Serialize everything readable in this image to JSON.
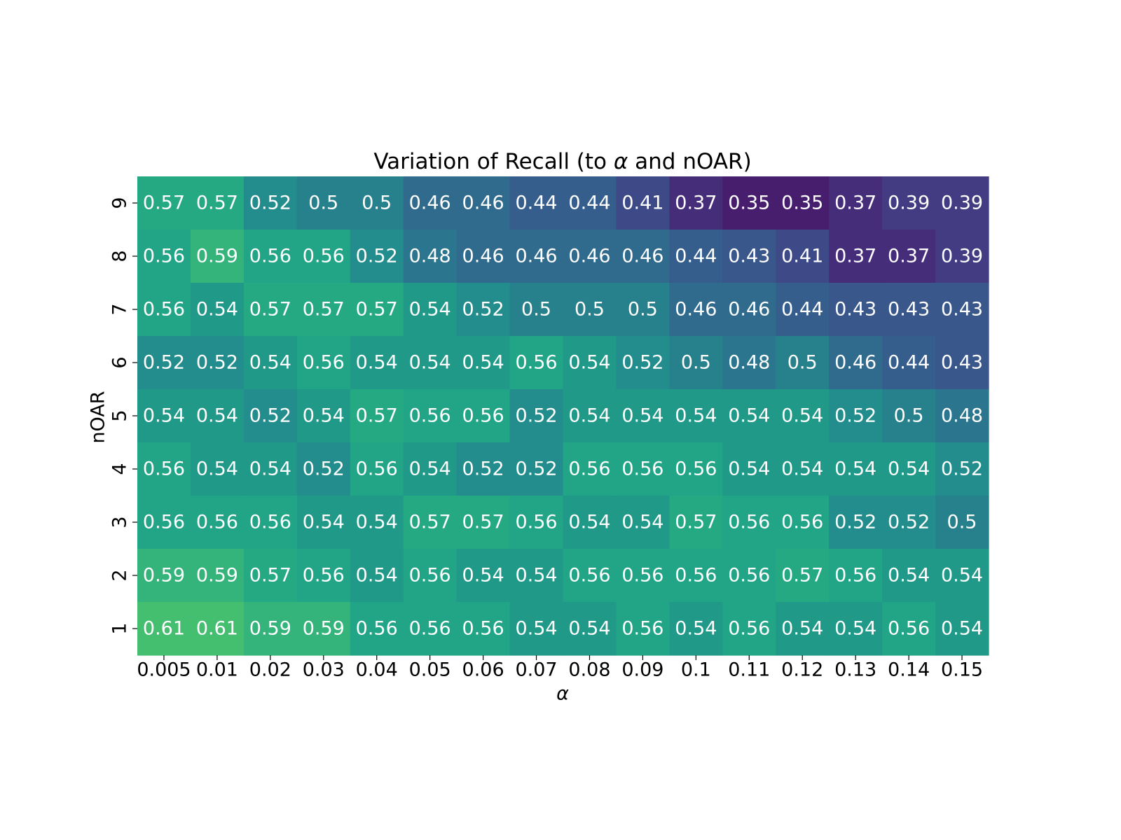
{
  "chart_data": {
    "type": "heatmap",
    "title_pre": "Variation of Recall (to ",
    "title_symbol": "α",
    "title_post": " and nOAR)",
    "xlabel": "α",
    "ylabel": "nOAR",
    "x_categories": [
      "0.005",
      "0.01",
      "0.02",
      "0.03",
      "0.04",
      "0.05",
      "0.06",
      "0.07",
      "0.08",
      "0.09",
      "0.1",
      "0.11",
      "0.12",
      "0.13",
      "0.14",
      "0.15"
    ],
    "y_categories": [
      "9",
      "8",
      "7",
      "6",
      "5",
      "4",
      "3",
      "2",
      "1"
    ],
    "values": [
      [
        0.57,
        0.57,
        0.52,
        0.5,
        0.5,
        0.46,
        0.46,
        0.44,
        0.44,
        0.41,
        0.37,
        0.35,
        0.35,
        0.37,
        0.39,
        0.39
      ],
      [
        0.56,
        0.59,
        0.56,
        0.56,
        0.52,
        0.48,
        0.46,
        0.46,
        0.46,
        0.46,
        0.44,
        0.43,
        0.41,
        0.37,
        0.37,
        0.39
      ],
      [
        0.56,
        0.54,
        0.57,
        0.57,
        0.57,
        0.54,
        0.52,
        0.5,
        0.5,
        0.5,
        0.46,
        0.46,
        0.44,
        0.43,
        0.43,
        0.43
      ],
      [
        0.52,
        0.52,
        0.54,
        0.56,
        0.54,
        0.54,
        0.54,
        0.56,
        0.54,
        0.52,
        0.5,
        0.48,
        0.5,
        0.46,
        0.44,
        0.43
      ],
      [
        0.54,
        0.54,
        0.52,
        0.54,
        0.57,
        0.56,
        0.56,
        0.52,
        0.54,
        0.54,
        0.54,
        0.54,
        0.54,
        0.52,
        0.5,
        0.48
      ],
      [
        0.56,
        0.54,
        0.54,
        0.52,
        0.56,
        0.54,
        0.52,
        0.52,
        0.56,
        0.56,
        0.56,
        0.54,
        0.54,
        0.54,
        0.54,
        0.52
      ],
      [
        0.56,
        0.56,
        0.56,
        0.54,
        0.54,
        0.57,
        0.57,
        0.56,
        0.54,
        0.54,
        0.57,
        0.56,
        0.56,
        0.52,
        0.52,
        0.5
      ],
      [
        0.59,
        0.59,
        0.57,
        0.56,
        0.54,
        0.56,
        0.54,
        0.54,
        0.56,
        0.56,
        0.56,
        0.56,
        0.57,
        0.56,
        0.54,
        0.54
      ],
      [
        0.61,
        0.61,
        0.59,
        0.59,
        0.56,
        0.56,
        0.56,
        0.54,
        0.54,
        0.56,
        0.54,
        0.56,
        0.54,
        0.54,
        0.56,
        0.54
      ]
    ],
    "value_range": [
      0.35,
      0.61
    ],
    "colormap": "viridis",
    "cell_label_color": "#ffffff",
    "grid": false,
    "legend": "none"
  }
}
